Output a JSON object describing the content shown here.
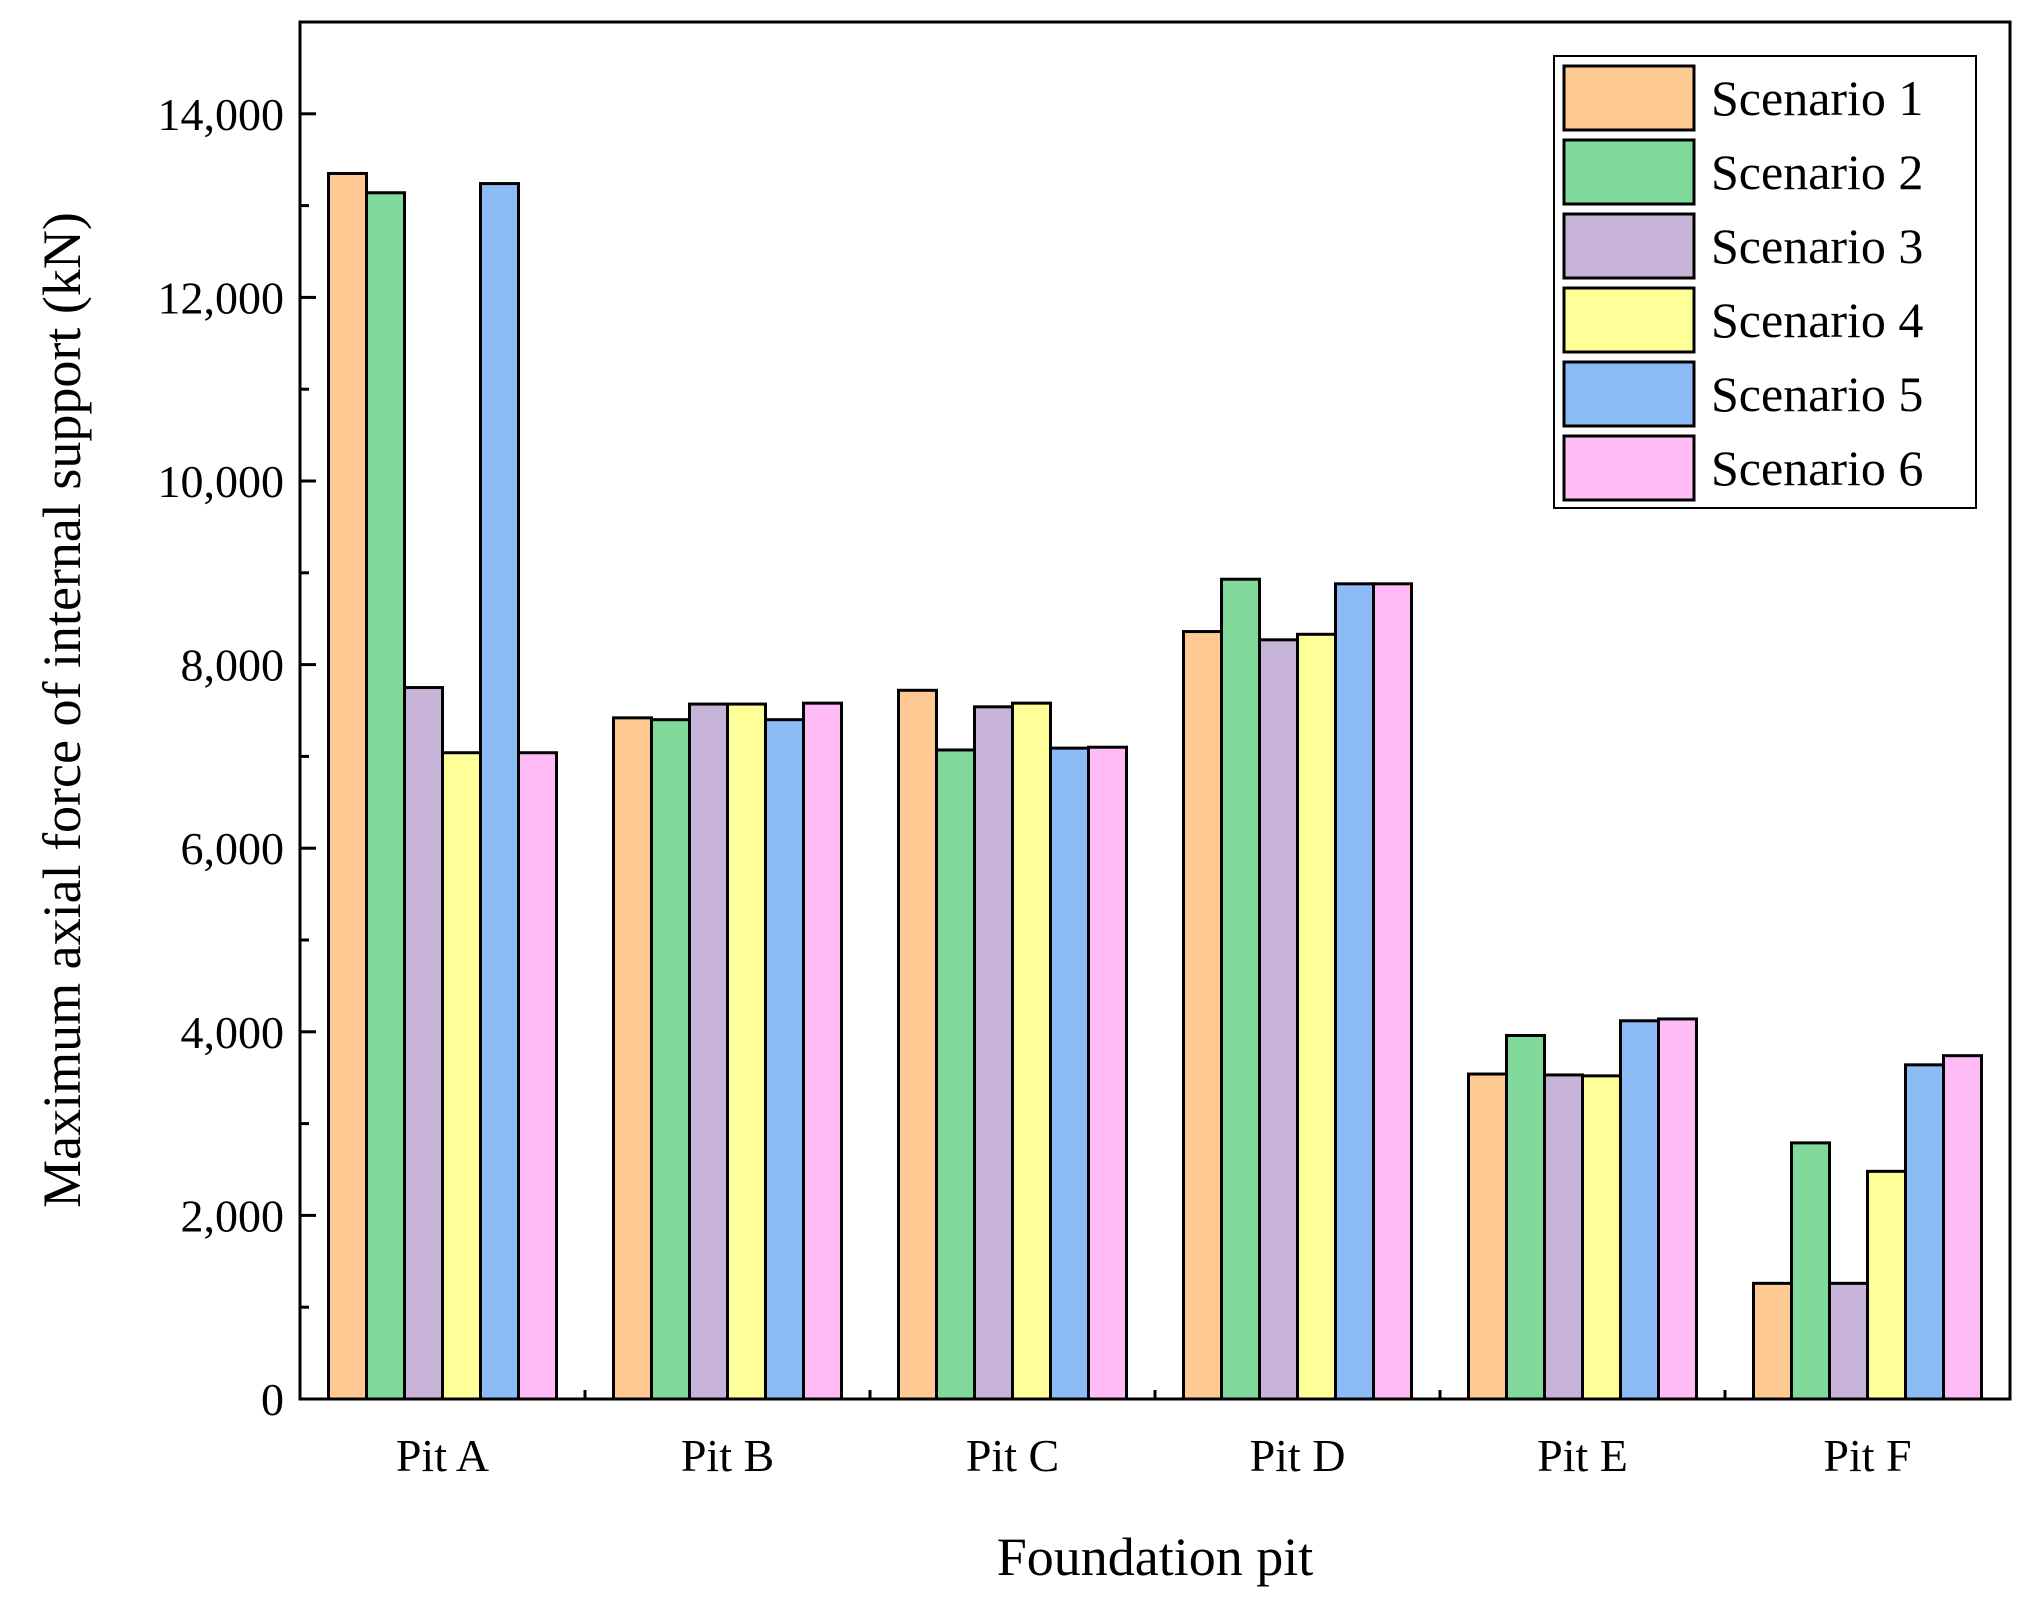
{
  "chart_data": {
    "type": "bar",
    "title": "",
    "xlabel": "Foundation pit",
    "ylabel": "Maximum axial force of internal support (kN)",
    "ylim": [
      0,
      15000
    ],
    "yticks": [
      0,
      2000,
      4000,
      6000,
      8000,
      10000,
      12000,
      14000
    ],
    "ytick_labels": [
      "0",
      "2,000",
      "4,000",
      "6,000",
      "8,000",
      "10,000",
      "12,000",
      "14,000"
    ],
    "categories": [
      "Pit A",
      "Pit B",
      "Pit C",
      "Pit D",
      "Pit E",
      "Pit F"
    ],
    "legend_position": "top-right",
    "series": [
      {
        "name": "Scenario 1",
        "color": "#FFC994",
        "values": [
          13350,
          7420,
          7720,
          8360,
          3540,
          1260
        ]
      },
      {
        "name": "Scenario 2",
        "color": "#80D99B",
        "values": [
          13140,
          7400,
          7070,
          8930,
          3960,
          2790
        ]
      },
      {
        "name": "Scenario 3",
        "color": "#C8B4D8",
        "values": [
          7750,
          7570,
          7540,
          8270,
          3530,
          1260
        ]
      },
      {
        "name": "Scenario 4",
        "color": "#FFFF99",
        "values": [
          7040,
          7570,
          7580,
          8330,
          3520,
          2480
        ]
      },
      {
        "name": "Scenario 5",
        "color": "#8DBBF5",
        "values": [
          13240,
          7400,
          7090,
          8880,
          4120,
          3640
        ]
      },
      {
        "name": "Scenario 6",
        "color": "#FFBBF5",
        "values": [
          7040,
          7580,
          7100,
          8880,
          4140,
          3740
        ]
      }
    ]
  }
}
